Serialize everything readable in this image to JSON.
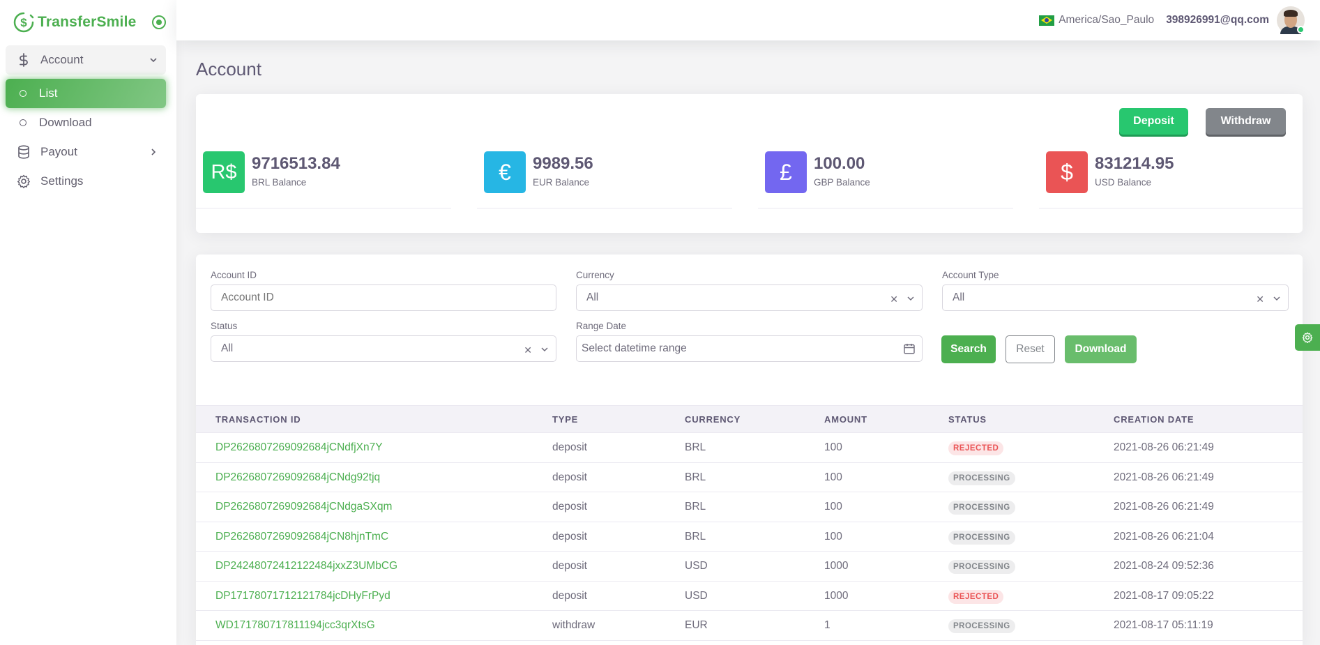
{
  "brand": {
    "name": "TransferSmile"
  },
  "sidebar": {
    "items": [
      {
        "label": "Account",
        "icon": "dollar-icon"
      },
      {
        "label": "List"
      },
      {
        "label": "Download"
      },
      {
        "label": "Payout",
        "icon": "database-icon"
      },
      {
        "label": "Settings",
        "icon": "gear-icon"
      }
    ]
  },
  "header": {
    "timezone": "America/Sao_Paulo",
    "email": "398926991@qq.com"
  },
  "page": {
    "title": "Account"
  },
  "actions": {
    "deposit": "Deposit",
    "withdraw": "Withdraw"
  },
  "balances": [
    {
      "symbol": "R$",
      "value": "9716513.84",
      "label": "BRL Balance",
      "color": "#28c76f"
    },
    {
      "symbol": "€",
      "value": "9989.56",
      "label": "EUR Balance",
      "color": "#26b6e4"
    },
    {
      "symbol": "£",
      "value": "100.00",
      "label": "GBP Balance",
      "color": "#7367f0"
    },
    {
      "symbol": "$",
      "value": "831214.95",
      "label": "USD Balance",
      "color": "#ea5455"
    }
  ],
  "filters": {
    "account_id": {
      "label": "Account ID",
      "placeholder": "Account ID"
    },
    "currency": {
      "label": "Currency",
      "value": "All"
    },
    "account_type": {
      "label": "Account Type",
      "value": "All"
    },
    "status": {
      "label": "Status",
      "value": "All"
    },
    "range_date": {
      "label": "Range Date",
      "placeholder": "Select datetime range"
    },
    "search": "Search",
    "reset": "Reset",
    "download": "Download"
  },
  "table": {
    "headers": [
      "TRANSACTION ID",
      "TYPE",
      "CURRENCY",
      "AMOUNT",
      "STATUS",
      "CREATION DATE"
    ],
    "rows": [
      [
        "DP2626807269092684jCNdfjXn7Y",
        "deposit",
        "BRL",
        "100",
        "REJECTED",
        "2021-08-26 06:21:49"
      ],
      [
        "DP2626807269092684jCNdg92tjq",
        "deposit",
        "BRL",
        "100",
        "PROCESSING",
        "2021-08-26 06:21:49"
      ],
      [
        "DP2626807269092684jCNdgaSXqm",
        "deposit",
        "BRL",
        "100",
        "PROCESSING",
        "2021-08-26 06:21:49"
      ],
      [
        "DP2626807269092684jCN8hjnTmC",
        "deposit",
        "BRL",
        "100",
        "PROCESSING",
        "2021-08-26 06:21:04"
      ],
      [
        "DP24248072412122484jxxZ3UMbCG",
        "deposit",
        "USD",
        "1000",
        "PROCESSING",
        "2021-08-24 09:52:36"
      ],
      [
        "DP17178071712121784jcDHyFrPyd",
        "deposit",
        "USD",
        "1000",
        "REJECTED",
        "2021-08-17 09:05:22"
      ],
      [
        "WD171780717811194jcc3qrXtsG",
        "withdraw",
        "EUR",
        "1",
        "PROCESSING",
        "2021-08-17 05:11:19"
      ]
    ]
  }
}
